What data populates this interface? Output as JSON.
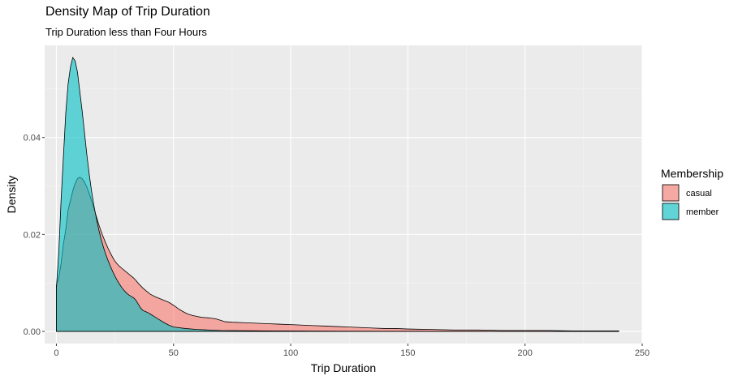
{
  "chart_data": {
    "type": "area",
    "title": "Density Map of Trip Duration",
    "subtitle": "Trip Duration less than Four Hours",
    "xlabel": "Trip Duration",
    "ylabel": "Density",
    "xlim": [
      -5,
      250
    ],
    "ylim": [
      -0.0025,
      0.059
    ],
    "x_ticks": [
      0,
      50,
      100,
      150,
      200,
      250
    ],
    "y_ticks": [
      0.0,
      0.02,
      0.04
    ],
    "y_tick_labels": [
      "0.00",
      "0.02",
      "0.04"
    ],
    "grid": true,
    "legend": {
      "title": "Membership",
      "position": "right"
    },
    "series": [
      {
        "name": "casual",
        "color": "#F8766D",
        "points": [
          [
            0,
            0.0095
          ],
          [
            1,
            0.011
          ],
          [
            2,
            0.014
          ],
          [
            3,
            0.018
          ],
          [
            4,
            0.021
          ],
          [
            5,
            0.025
          ],
          [
            6,
            0.027
          ],
          [
            7,
            0.029
          ],
          [
            8,
            0.0305
          ],
          [
            9,
            0.0315
          ],
          [
            10,
            0.0318
          ],
          [
            11,
            0.0315
          ],
          [
            12,
            0.0308
          ],
          [
            13,
            0.0298
          ],
          [
            14,
            0.0285
          ],
          [
            15,
            0.027
          ],
          [
            16,
            0.0255
          ],
          [
            17,
            0.0238
          ],
          [
            18,
            0.0222
          ],
          [
            19,
            0.0208
          ],
          [
            20,
            0.0195
          ],
          [
            21,
            0.0183
          ],
          [
            22,
            0.0172
          ],
          [
            23,
            0.0162
          ],
          [
            24,
            0.0153
          ],
          [
            25,
            0.0145
          ],
          [
            26,
            0.0139
          ],
          [
            27,
            0.0134
          ],
          [
            28,
            0.013
          ],
          [
            29,
            0.0126
          ],
          [
            30,
            0.0122
          ],
          [
            31,
            0.0118
          ],
          [
            32,
            0.0114
          ],
          [
            33,
            0.011
          ],
          [
            34,
            0.0105
          ],
          [
            35,
            0.0099
          ],
          [
            36,
            0.0094
          ],
          [
            37,
            0.0089
          ],
          [
            38,
            0.0085
          ],
          [
            39,
            0.0081
          ],
          [
            40,
            0.0077
          ],
          [
            42,
            0.0072
          ],
          [
            44,
            0.0068
          ],
          [
            46,
            0.0064
          ],
          [
            48,
            0.006
          ],
          [
            50,
            0.0054
          ],
          [
            52,
            0.0047
          ],
          [
            54,
            0.0041
          ],
          [
            56,
            0.0036
          ],
          [
            58,
            0.0033
          ],
          [
            60,
            0.0031
          ],
          [
            62,
            0.0029
          ],
          [
            65,
            0.0028
          ],
          [
            68,
            0.0026
          ],
          [
            70,
            0.0023
          ],
          [
            72,
            0.002
          ],
          [
            75,
            0.0019
          ],
          [
            80,
            0.0018
          ],
          [
            85,
            0.0017
          ],
          [
            90,
            0.0016
          ],
          [
            95,
            0.0015
          ],
          [
            100,
            0.0014
          ],
          [
            105,
            0.0013
          ],
          [
            110,
            0.0012
          ],
          [
            115,
            0.0011
          ],
          [
            120,
            0.001
          ],
          [
            125,
            0.0009
          ],
          [
            130,
            0.0008
          ],
          [
            135,
            0.0007
          ],
          [
            140,
            0.0006
          ],
          [
            145,
            0.0006
          ],
          [
            150,
            0.0005
          ],
          [
            160,
            0.0004
          ],
          [
            170,
            0.0003
          ],
          [
            180,
            0.0003
          ],
          [
            190,
            0.0002
          ],
          [
            200,
            0.0002
          ],
          [
            210,
            0.0002
          ],
          [
            220,
            0.0001
          ],
          [
            230,
            0.0001
          ],
          [
            240,
            0.0001
          ]
        ]
      },
      {
        "name": "member",
        "color": "#00BFC4",
        "points": [
          [
            0,
            0.009
          ],
          [
            1,
            0.016
          ],
          [
            2,
            0.027
          ],
          [
            3,
            0.036
          ],
          [
            4,
            0.045
          ],
          [
            5,
            0.051
          ],
          [
            6,
            0.0545
          ],
          [
            7,
            0.0565
          ],
          [
            8,
            0.0558
          ],
          [
            9,
            0.0535
          ],
          [
            10,
            0.0495
          ],
          [
            11,
            0.0455
          ],
          [
            12,
            0.041
          ],
          [
            13,
            0.0365
          ],
          [
            14,
            0.0325
          ],
          [
            15,
            0.029
          ],
          [
            16,
            0.026
          ],
          [
            17,
            0.0235
          ],
          [
            18,
            0.0212
          ],
          [
            19,
            0.0192
          ],
          [
            20,
            0.0175
          ],
          [
            21,
            0.016
          ],
          [
            22,
            0.0147
          ],
          [
            23,
            0.0135
          ],
          [
            24,
            0.0124
          ],
          [
            25,
            0.0114
          ],
          [
            26,
            0.0105
          ],
          [
            27,
            0.0097
          ],
          [
            28,
            0.009
          ],
          [
            29,
            0.0084
          ],
          [
            30,
            0.0079
          ],
          [
            31,
            0.0075
          ],
          [
            32,
            0.0072
          ],
          [
            33,
            0.0069
          ],
          [
            34,
            0.0064
          ],
          [
            35,
            0.0056
          ],
          [
            36,
            0.0048
          ],
          [
            37,
            0.0043
          ],
          [
            38,
            0.0041
          ],
          [
            39,
            0.0039
          ],
          [
            40,
            0.0036
          ],
          [
            42,
            0.003
          ],
          [
            44,
            0.0024
          ],
          [
            46,
            0.0018
          ],
          [
            48,
            0.0013
          ],
          [
            50,
            0.0009
          ],
          [
            55,
            0.0006
          ],
          [
            60,
            0.0004
          ],
          [
            65,
            0.0003
          ],
          [
            70,
            0.0002
          ],
          [
            80,
            0.00015
          ],
          [
            90,
            0.0001
          ],
          [
            100,
            8e-05
          ],
          [
            120,
            5e-05
          ],
          [
            140,
            3e-05
          ],
          [
            160,
            2e-05
          ],
          [
            180,
            1e-05
          ],
          [
            200,
            1e-05
          ],
          [
            220,
            1e-05
          ],
          [
            240,
            0.0
          ]
        ]
      }
    ]
  }
}
